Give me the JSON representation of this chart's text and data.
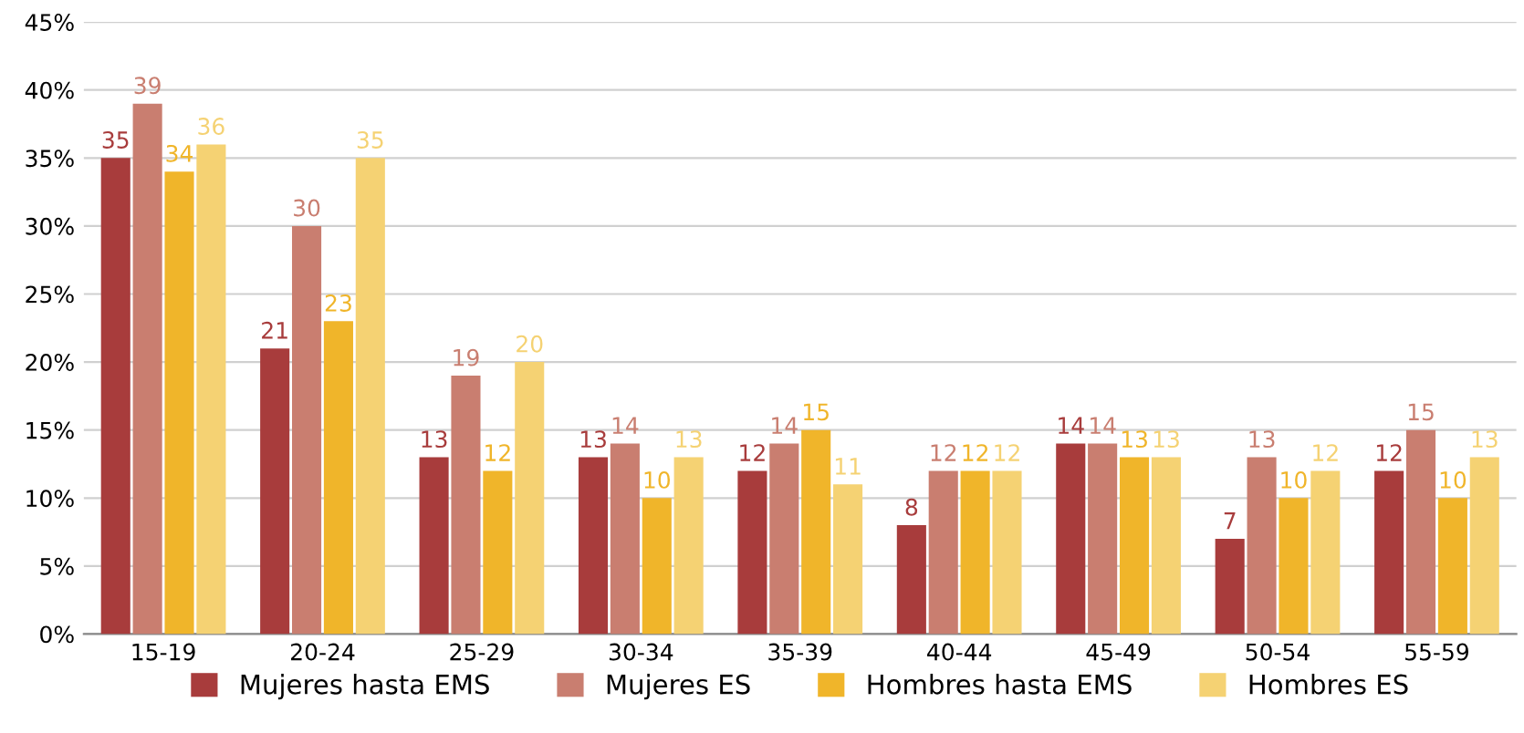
{
  "chart_data": {
    "type": "bar",
    "categories": [
      "15-19",
      "20-24",
      "25-29",
      "30-34",
      "35-39",
      "40-44",
      "45-49",
      "50-54",
      "55-59"
    ],
    "series": [
      {
        "name": "Mujeres hasta EMS",
        "color": "#a83c3c",
        "values": [
          35,
          21,
          13,
          13,
          12,
          8,
          14,
          7,
          12
        ]
      },
      {
        "name": "Mujeres ES",
        "color": "#c97e70",
        "values": [
          39,
          30,
          19,
          14,
          14,
          12,
          14,
          13,
          15
        ]
      },
      {
        "name": "Hombres hasta EMS",
        "color": "#f0b52a",
        "values": [
          34,
          23,
          12,
          10,
          15,
          12,
          13,
          10,
          10
        ]
      },
      {
        "name": "Hombres ES",
        "color": "#f5d273",
        "values": [
          36,
          35,
          20,
          13,
          11,
          12,
          13,
          12,
          13
        ]
      }
    ],
    "ylim": [
      0,
      45
    ],
    "yticks": [
      {
        "value": 0,
        "label": "0%"
      },
      {
        "value": 5,
        "label": "5%"
      },
      {
        "value": 10,
        "label": "10%"
      },
      {
        "value": 15,
        "label": "15%"
      },
      {
        "value": 20,
        "label": "20%"
      },
      {
        "value": 25,
        "label": "25%"
      },
      {
        "value": 30,
        "label": "30%"
      },
      {
        "value": 35,
        "label": "35%"
      },
      {
        "value": 40,
        "label": "40%"
      },
      {
        "value": 45,
        "label": "45%"
      }
    ],
    "grid": "y",
    "legend": "bottom",
    "data_labels": true
  }
}
